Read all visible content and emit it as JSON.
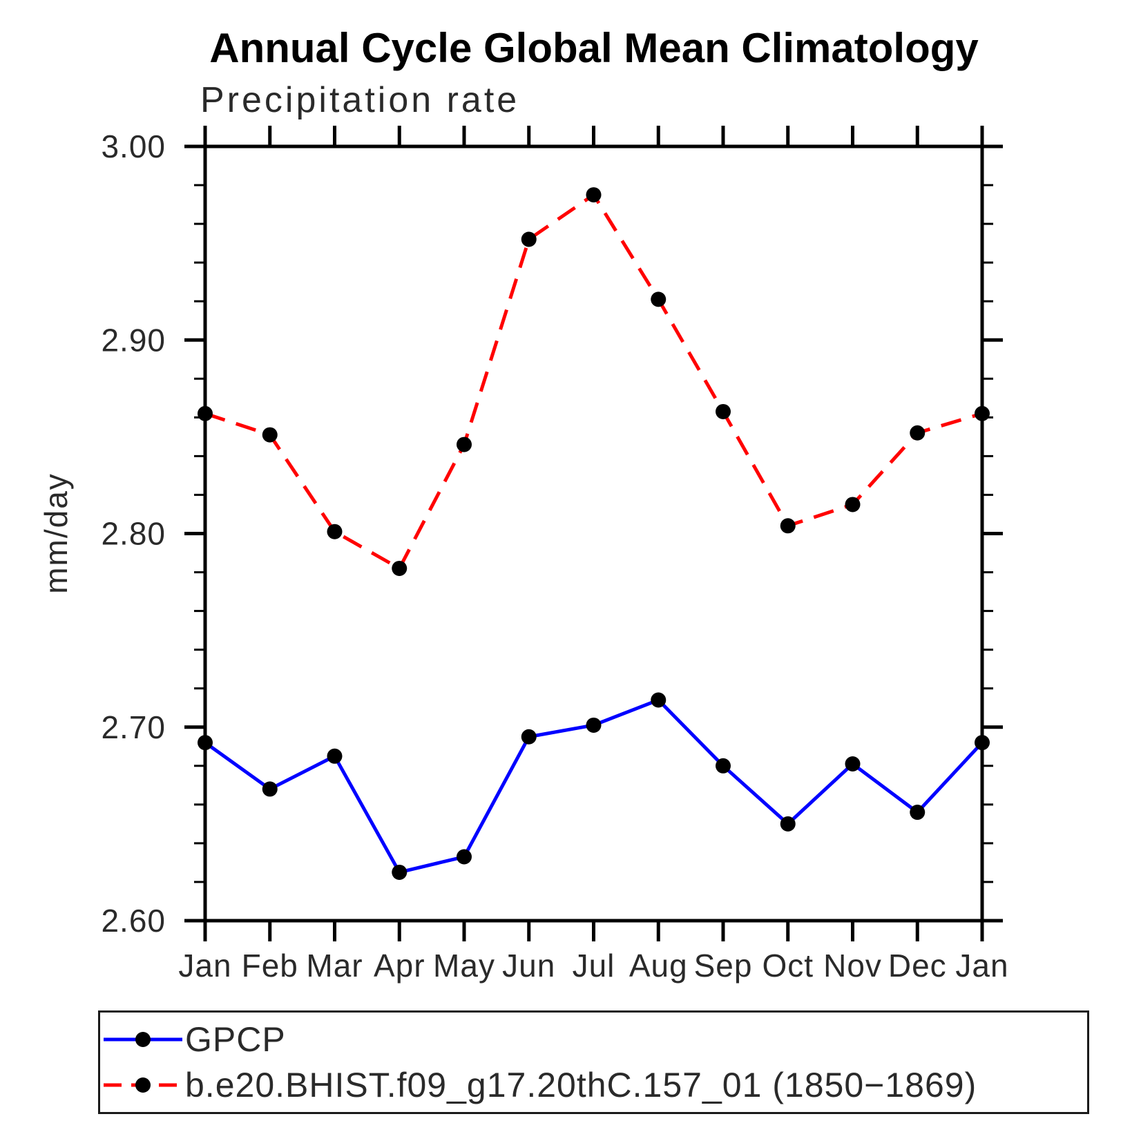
{
  "title": "Annual Cycle Global Mean Climatology",
  "subtitle": "Precipitation rate",
  "ylabel": "mm/day",
  "legend": {
    "items": [
      {
        "label": "GPCP",
        "color": "#0000ff",
        "style": "solid",
        "marker_color": "#000000"
      },
      {
        "label": "b.e20.BHIST.f09_g17.20thC.157_01 (1850−1869)",
        "color": "#ff0000",
        "style": "dashed",
        "marker_color": "#000000"
      }
    ]
  },
  "chart_data": {
    "type": "line",
    "x_categories": [
      "Jan",
      "Feb",
      "Mar",
      "Apr",
      "May",
      "Jun",
      "Jul",
      "Aug",
      "Sep",
      "Oct",
      "Nov",
      "Dec",
      "Jan"
    ],
    "ylim": [
      2.6,
      3.0
    ],
    "yticks_major": [
      2.6,
      2.7,
      2.8,
      2.9,
      3.0
    ],
    "ytick_labels": [
      "2.60",
      "2.70",
      "2.80",
      "2.90",
      "3.00"
    ],
    "ytick_minor_step": 0.02,
    "grid": false,
    "legend_position": "bottom",
    "marker": "filled-circle",
    "series": [
      {
        "name": "GPCP",
        "color": "#0000ff",
        "dash": false,
        "values": [
          2.692,
          2.668,
          2.685,
          2.625,
          2.633,
          2.695,
          2.701,
          2.714,
          2.68,
          2.65,
          2.681,
          2.656,
          2.692
        ]
      },
      {
        "name": "b.e20.BHIST.f09_g17.20thC.157_01 (1850−1869)",
        "color": "#ff0000",
        "dash": true,
        "values": [
          2.862,
          2.851,
          2.801,
          2.782,
          2.846,
          2.952,
          2.975,
          2.921,
          2.863,
          2.804,
          2.815,
          2.852,
          2.862
        ]
      }
    ]
  }
}
